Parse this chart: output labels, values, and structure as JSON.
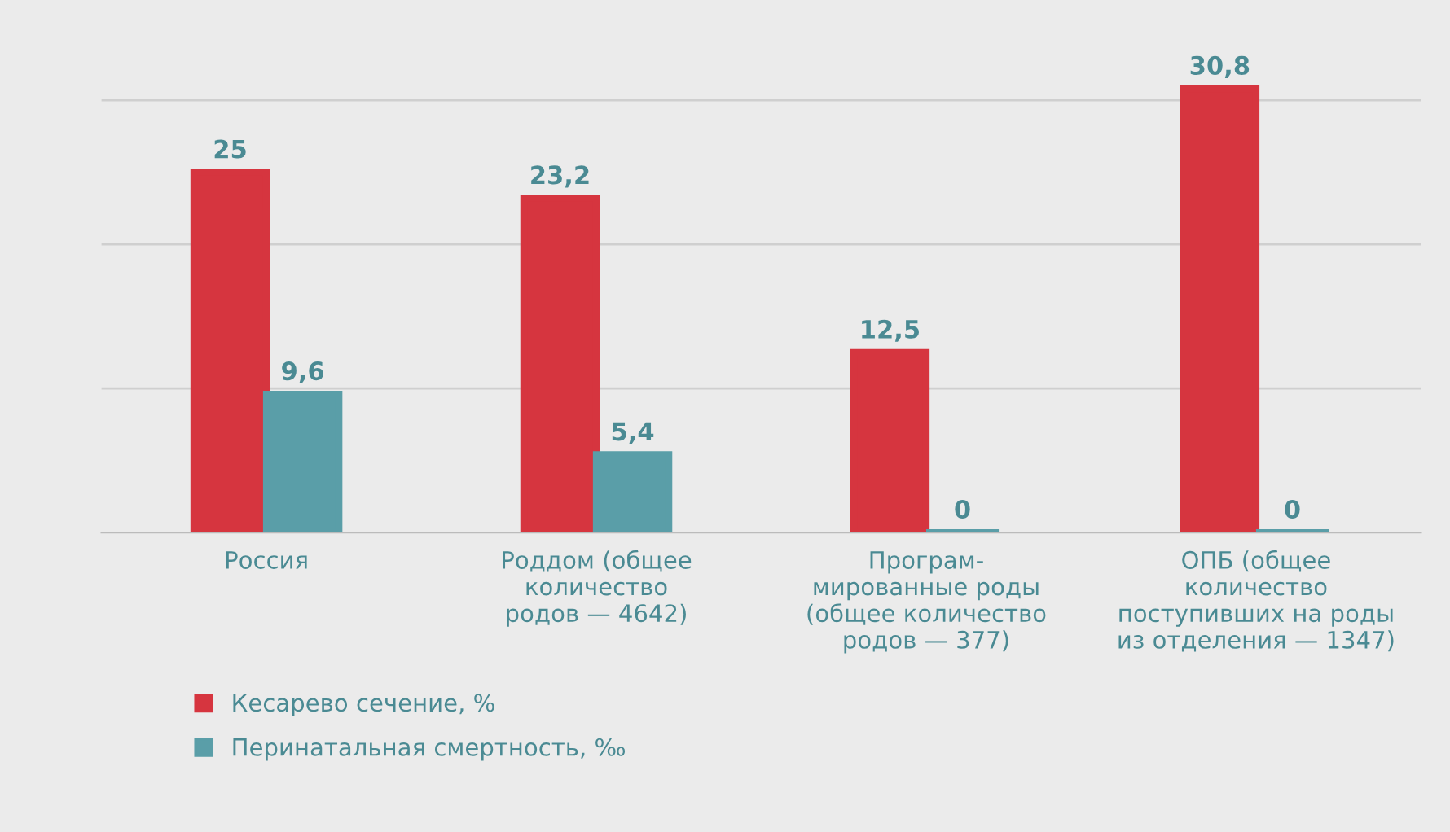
{
  "chart_data": {
    "type": "bar",
    "categories": [
      "Россия",
      "Роддом (общее\nколичество\nродов — 4642)",
      "Програм-\nмированные роды\n(общее количество\nродов — 377)",
      "ОПБ (общее\nколичество\nпоступивших на роды\nиз отделения — 1347)"
    ],
    "series": [
      {
        "name": "Кесарево сечение, %",
        "color": "#d6353f",
        "values": [
          25,
          23.2,
          12.5,
          30.8
        ],
        "value_labels": [
          "25",
          "23,2",
          "12,5",
          "30,8"
        ]
      },
      {
        "name": "Перинатальная смертность, ‰",
        "color": "#5a9ea8",
        "values": [
          9.6,
          5.4,
          0,
          0
        ],
        "value_labels": [
          "9,6",
          "5,4",
          "0",
          "0"
        ]
      }
    ],
    "yticks": [
      {
        "value": 10,
        "label": null
      },
      {
        "value": 20,
        "label": null
      },
      {
        "value": 30,
        "label": null
      }
    ],
    "grid": "y",
    "legend": "bottom left",
    "tick_labels": "x"
  }
}
